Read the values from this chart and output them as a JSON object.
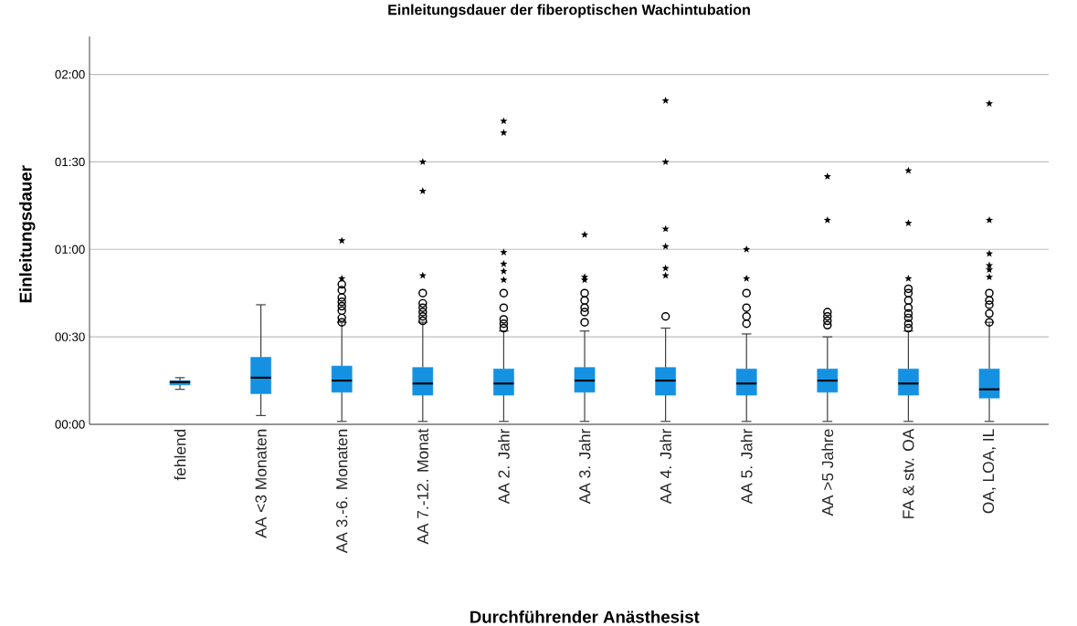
{
  "chart_data": {
    "type": "box",
    "title": "Einleitungsdauer der fiberoptischen Wachintubation",
    "xlabel": "Durchführender Anästhesist",
    "ylabel": "Einleitungsdauer",
    "categories": [
      "fehlend",
      "AA <3 Monaten",
      "AA 3.-6. Monaten",
      "AA 7.-12. Monat",
      "AA 2. Jahr",
      "AA 3. Jahr",
      "AA 4. Jahr",
      "AA 5. Jahr",
      "AA >5 Jahre",
      "FA & stv. OA",
      "OA, LOA, IL"
    ],
    "ylim": [
      0,
      133
    ],
    "yticks": [
      {
        "value": 0,
        "label": "00:00"
      },
      {
        "value": 30,
        "label": "00:30"
      },
      {
        "value": 60,
        "label": "01:00"
      },
      {
        "value": 90,
        "label": "01:30"
      },
      {
        "value": 120,
        "label": "02:00"
      }
    ],
    "grid": "y",
    "series": [
      {
        "color": "#1591e2",
        "marker": "circle",
        "boxes": [
          {
            "low": 12,
            "q1": 13.5,
            "median": 14.5,
            "q3": 15,
            "high": 16
          },
          {
            "low": 3,
            "q1": 10.5,
            "median": 16,
            "q3": 23,
            "high": 41
          },
          {
            "low": 1,
            "q1": 11,
            "median": 15,
            "q3": 20,
            "high": 35,
            "outliers": [
              35,
              36.5,
              39,
              40.5,
              42,
              43.5,
              46,
              48
            ]
          },
          {
            "low": 1,
            "q1": 10,
            "median": 14,
            "q3": 19.5,
            "high": 35,
            "outliers": [
              35.5,
              37,
              38.5,
              40,
              41.5,
              45
            ]
          },
          {
            "low": 1,
            "q1": 10,
            "median": 14,
            "q3": 19,
            "high": 32,
            "outliers": [
              33,
              34.5,
              36,
              40,
              45
            ]
          },
          {
            "low": 1,
            "q1": 11,
            "median": 15,
            "q3": 19.5,
            "high": 32,
            "outliers": [
              35,
              38.5,
              40,
              42.5,
              45
            ]
          },
          {
            "low": 1,
            "q1": 10,
            "median": 15,
            "q3": 19.5,
            "high": 33,
            "outliers": [
              37
            ]
          },
          {
            "low": 1,
            "q1": 10,
            "median": 14,
            "q3": 19,
            "high": 31,
            "outliers": [
              34.5,
              37,
              40,
              45
            ]
          },
          {
            "low": 1,
            "q1": 11,
            "median": 15,
            "q3": 19,
            "high": 30,
            "outliers": [
              34,
              35.5,
              37,
              38.5
            ]
          },
          {
            "low": 1,
            "q1": 10,
            "median": 14,
            "q3": 19,
            "high": 32,
            "outliers": [
              33,
              34.5,
              36.5,
              38,
              40,
              42.5,
              45,
              46.5
            ]
          },
          {
            "low": 1,
            "q1": 9,
            "median": 12,
            "q3": 19,
            "high": 35,
            "outliers": [
              35,
              38,
              41,
              42.5,
              45
            ]
          }
        ]
      },
      {
        "type": "scatter",
        "marker": "star",
        "color": "#000000",
        "x": [
          "AA 3.-6. Monaten",
          "AA 3.-6. Monaten",
          "AA 7.-12. Monat",
          "AA 7.-12. Monat",
          "AA 7.-12. Monat",
          "AA 2. Jahr",
          "AA 2. Jahr",
          "AA 2. Jahr",
          "AA 2. Jahr",
          "AA 2. Jahr",
          "AA 2. Jahr",
          "AA 3. Jahr",
          "AA 3. Jahr",
          "AA 3. Jahr",
          "AA 4. Jahr",
          "AA 4. Jahr",
          "AA 4. Jahr",
          "AA 4. Jahr",
          "AA 4. Jahr",
          "AA 4. Jahr",
          "AA 5. Jahr",
          "AA 5. Jahr",
          "AA >5 Jahre",
          "AA >5 Jahre",
          "FA & stv. OA",
          "FA & stv. OA",
          "FA & stv. OA",
          "OA, LOA, IL",
          "OA, LOA, IL",
          "OA, LOA, IL",
          "OA, LOA, IL",
          "OA, LOA, IL",
          "OA, LOA, IL"
        ],
        "values": [
          50,
          63,
          51,
          80,
          90,
          49.5,
          52.5,
          55,
          59,
          100,
          104,
          49.5,
          50.5,
          65,
          51,
          53.5,
          61,
          67,
          90,
          111,
          50,
          60,
          70,
          85,
          50,
          69,
          87,
          50.5,
          53,
          54.5,
          58.5,
          70,
          110
        ]
      }
    ]
  }
}
